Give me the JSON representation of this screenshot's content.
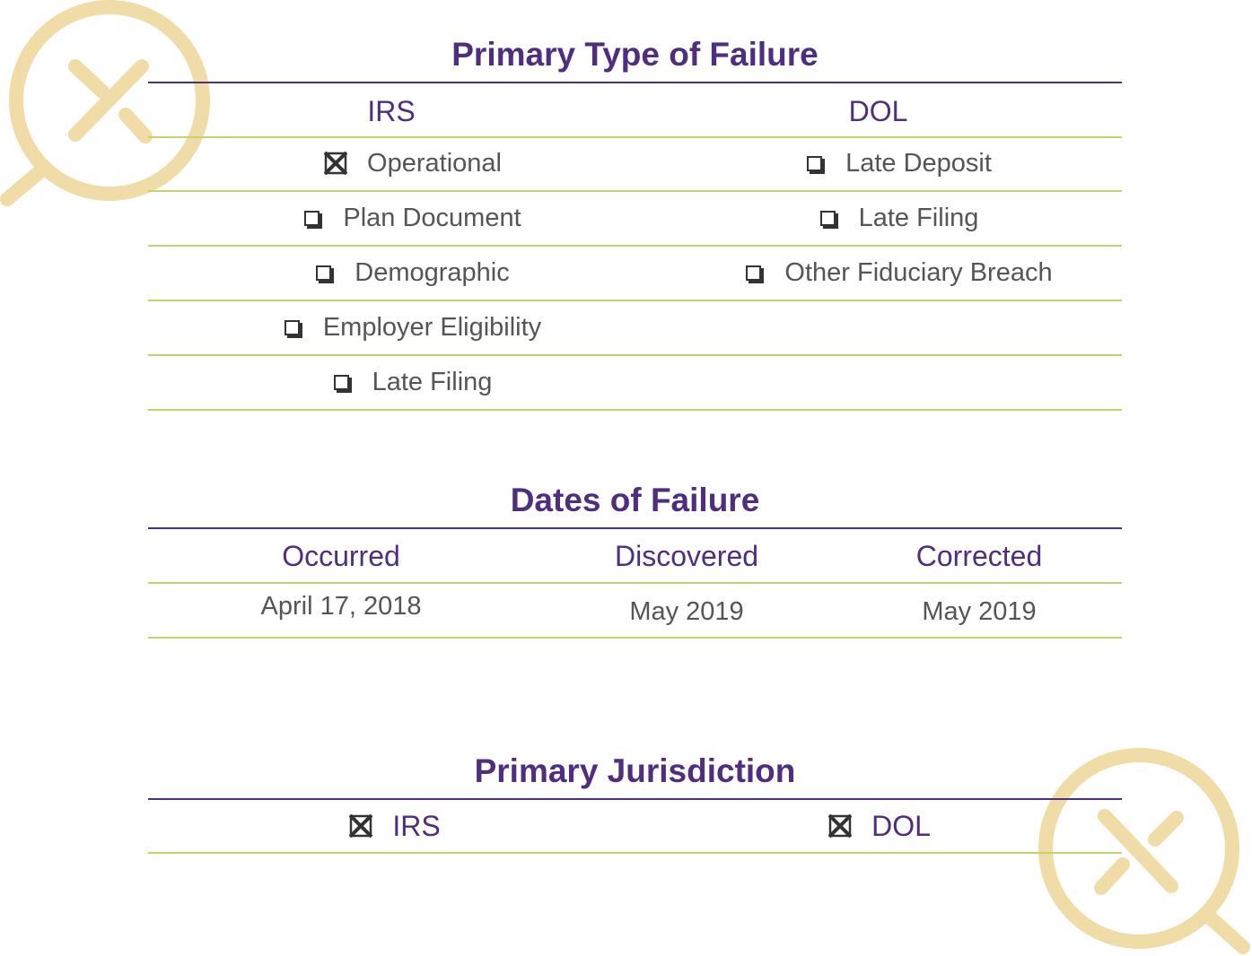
{
  "colors": {
    "purple": "#4f2d7f",
    "green": "#bdd56a",
    "gold": "#f0dca6",
    "text": "#555555"
  },
  "failure_type": {
    "title": "Primary Type of Failure",
    "irs_header": "IRS",
    "dol_header": "DOL",
    "irs_items": [
      {
        "label": "Operational",
        "checked": true
      },
      {
        "label": "Plan Document",
        "checked": false
      },
      {
        "label": "Demographic",
        "checked": false
      },
      {
        "label": "Employer Eligibility",
        "checked": false
      },
      {
        "label": "Late Filing",
        "checked": false
      }
    ],
    "dol_items": [
      {
        "label": "Late Deposit",
        "checked": false
      },
      {
        "label": "Late Filing",
        "checked": false
      },
      {
        "label": "Other Fiduciary Breach",
        "checked": false
      }
    ]
  },
  "dates": {
    "title": "Dates of Failure",
    "headers": [
      "Occurred",
      "Discovered",
      "Corrected"
    ],
    "values": [
      "April 17, 2018",
      "May 2019",
      "May 2019"
    ]
  },
  "jurisdiction": {
    "title": "Primary Jurisdiction",
    "options": [
      {
        "label": "IRS",
        "checked": true
      },
      {
        "label": "DOL",
        "checked": true
      }
    ]
  },
  "icons": [
    "magnifier-icon",
    "magnifier-icon"
  ]
}
